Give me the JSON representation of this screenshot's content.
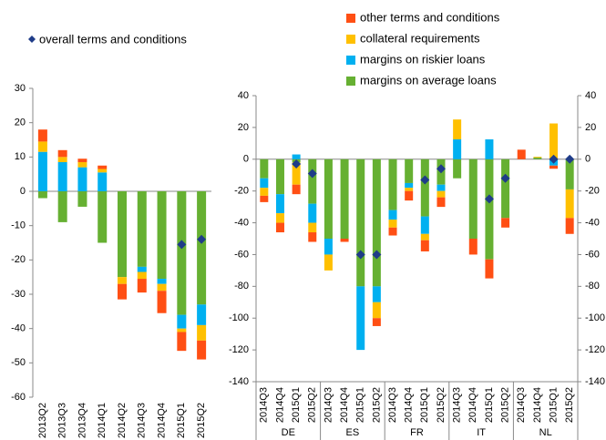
{
  "chart_data": [
    {
      "type": "bar",
      "stacked": true,
      "categories": [
        "2013Q2",
        "2013Q3",
        "2013Q4",
        "2014Q1",
        "2014Q2",
        "2014Q3",
        "2014Q4",
        "2015Q1",
        "2015Q2"
      ],
      "ylim": [
        -60,
        30
      ],
      "yticks": [
        -60,
        -50,
        -40,
        -30,
        -20,
        -10,
        0,
        10,
        20,
        30
      ],
      "series": [
        {
          "name": "margins on average loans",
          "color": "#66b032",
          "values": [
            -2,
            -9,
            -4.5,
            -15,
            -25,
            -22,
            -25.5,
            -36,
            -33
          ]
        },
        {
          "name": "margins on riskier loans",
          "color": "#00b0f0",
          "values": [
            11.5,
            8.5,
            7,
            5.5,
            0,
            -1.5,
            -1.5,
            -4,
            -6
          ]
        },
        {
          "name": "collateral requirements",
          "color": "#ffc000",
          "values": [
            3,
            1.5,
            1.5,
            1,
            -2,
            -2,
            -2,
            -1,
            -4.5
          ]
        },
        {
          "name": "other terms and conditions",
          "color": "#ff4f14",
          "values": [
            3.5,
            2,
            1,
            1,
            -4.5,
            -4,
            -6.5,
            -5.5,
            -5.5
          ]
        },
        {
          "name": "overall terms and conditions",
          "color": "#1f3c88",
          "marker": "diamond",
          "values": [
            null,
            null,
            null,
            null,
            null,
            null,
            null,
            -15.5,
            -14
          ]
        }
      ]
    },
    {
      "type": "bar",
      "stacked": true,
      "categories": [
        "2014Q3",
        "2014Q4",
        "2015Q1",
        "2015Q2",
        "2014Q3",
        "2014Q4",
        "2015Q1",
        "2015Q2",
        "2014Q3",
        "2014Q4",
        "2015Q1",
        "2015Q2",
        "2014Q3",
        "2014Q4",
        "2015Q1",
        "2015Q2",
        "2014Q3",
        "2014Q4",
        "2015Q1",
        "2015Q2"
      ],
      "groups": [
        "DE",
        "ES",
        "FR",
        "IT",
        "NL"
      ],
      "ylim": [
        -140,
        40
      ],
      "yticks": [
        -140,
        -120,
        -100,
        -80,
        -60,
        -40,
        -20,
        0,
        20,
        40
      ],
      "y2lim": [
        -140,
        40
      ],
      "y2ticks": [
        -140,
        -120,
        -100,
        -80,
        -60,
        -40,
        -20,
        0,
        20,
        40
      ],
      "series": [
        {
          "color": "#66b032",
          "values": [
            -12,
            -22,
            -2,
            -28,
            -50,
            -50,
            -80,
            -80,
            -32,
            -15,
            -36,
            -16,
            -12,
            -50,
            -63,
            -37,
            0,
            1,
            0,
            -19
          ]
        },
        {
          "color": "#00b0f0",
          "values": [
            -6,
            -12,
            3,
            -12,
            -10,
            0,
            -40,
            -10,
            -6,
            -3,
            -11,
            -4,
            12.5,
            0,
            12.5,
            0,
            0,
            0,
            -4,
            0
          ]
        },
        {
          "color": "#ffc000",
          "values": [
            -5,
            -6,
            -14,
            -6,
            -10,
            0,
            0,
            -10,
            -5,
            -2,
            -4,
            -4,
            12.5,
            0,
            0,
            0,
            0,
            0.5,
            22.5,
            -18
          ]
        },
        {
          "color": "#ff4f14",
          "values": [
            -4,
            -6,
            -6,
            -6,
            0,
            -2,
            0,
            -5,
            -5,
            -6,
            -7,
            -6,
            0,
            -10,
            -12,
            -6,
            6,
            0,
            -2,
            -10
          ]
        },
        {
          "color": "#1f3c88",
          "marker": "diamond",
          "values": [
            null,
            null,
            -3,
            -9,
            null,
            null,
            -60,
            -60,
            null,
            null,
            -13,
            -6,
            null,
            null,
            -25,
            -12,
            null,
            null,
            0,
            0
          ]
        }
      ]
    }
  ]
}
